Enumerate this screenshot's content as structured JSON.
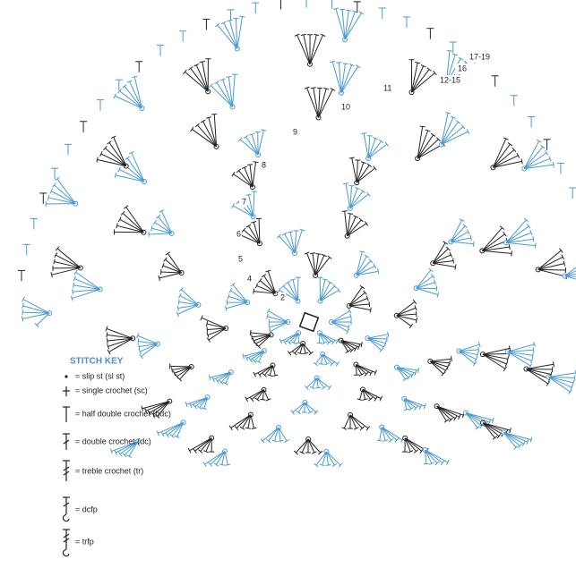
{
  "round_labels": [
    "2",
    "4",
    "5",
    "6",
    "7",
    "8",
    "9",
    "10",
    "11",
    "12-15",
    "16",
    "17-19"
  ],
  "stitch_key": {
    "title": "STITCH KEY",
    "items": [
      "= slip st (sl st)",
      "= single crochet (sc)",
      "= half double crochet (hdc)",
      "= double crochet (dc)",
      "= treble crochet (tr)",
      "= dcfp",
      "= trfp"
    ]
  }
}
